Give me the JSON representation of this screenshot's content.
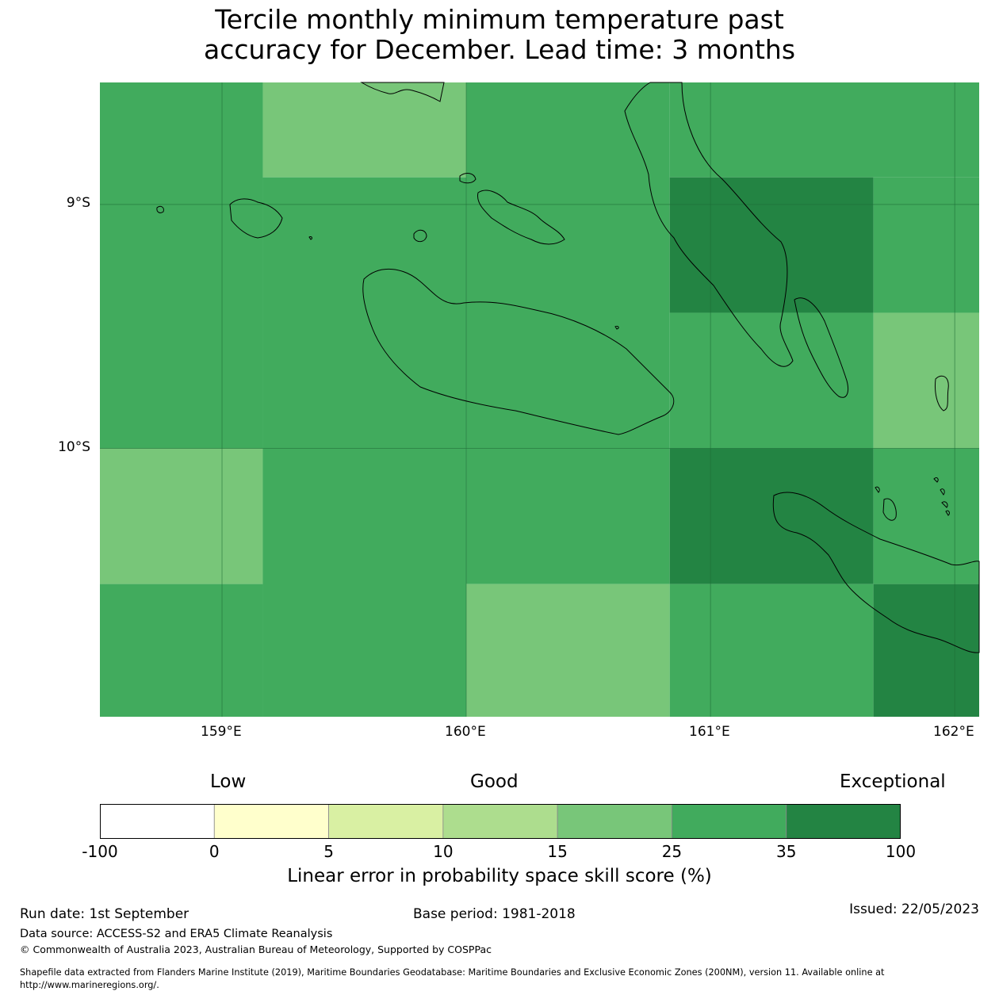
{
  "title": {
    "line1": "Tercile monthly minimum temperature past",
    "line2": "accuracy for December. Lead time: 3 months"
  },
  "map": {
    "lon_range": [
      158.5,
      162.1
    ],
    "lat_range": [
      -8.5,
      -11.1
    ],
    "x_ticks": [
      {
        "lon": 159,
        "label": "159°E"
      },
      {
        "lon": 160,
        "label": "160°E"
      },
      {
        "lon": 161,
        "label": "161°E"
      },
      {
        "lon": 162,
        "label": "162°E"
      }
    ],
    "y_ticks": [
      {
        "lat": -9,
        "label": "9°S"
      },
      {
        "lat": -10,
        "label": "10°S"
      }
    ],
    "grid": true,
    "grid_cells_note_skip": true,
    "cells": [
      {
        "lon0": 158.5,
        "lon1": 159.167,
        "lat0": -8.5,
        "lat1": -10.0,
        "class": 5
      },
      {
        "lon0": 159.167,
        "lon1": 160.0,
        "lat0": -8.5,
        "lat1": -8.889,
        "class": 4
      },
      {
        "lon0": 159.167,
        "lon1": 160.0,
        "lat0": -8.889,
        "lat1": -10.0,
        "class": 5
      },
      {
        "lon0": 160.0,
        "lon1": 160.833,
        "lat0": -8.5,
        "lat1": -10.0,
        "class": 5
      },
      {
        "lon0": 160.833,
        "lon1": 162.1,
        "lat0": -8.5,
        "lat1": -8.889,
        "class": 5
      },
      {
        "lon0": 160.833,
        "lon1": 161.667,
        "lat0": -8.889,
        "lat1": -9.444,
        "class": 6
      },
      {
        "lon0": 161.667,
        "lon1": 162.1,
        "lat0": -8.889,
        "lat1": -9.444,
        "class": 5
      },
      {
        "lon0": 160.833,
        "lon1": 161.667,
        "lat0": -9.444,
        "lat1": -10.0,
        "class": 5
      },
      {
        "lon0": 161.667,
        "lon1": 162.1,
        "lat0": -9.444,
        "lat1": -10.0,
        "class": 4
      },
      {
        "lon0": 158.5,
        "lon1": 159.167,
        "lat0": -10.0,
        "lat1": -10.556,
        "class": 4
      },
      {
        "lon0": 158.5,
        "lon1": 159.167,
        "lat0": -10.556,
        "lat1": -11.1,
        "class": 5
      },
      {
        "lon0": 159.167,
        "lon1": 160.0,
        "lat0": -10.0,
        "lat1": -11.1,
        "class": 5
      },
      {
        "lon0": 160.0,
        "lon1": 160.833,
        "lat0": -10.0,
        "lat1": -10.556,
        "class": 5
      },
      {
        "lon0": 160.0,
        "lon1": 160.833,
        "lat0": -10.556,
        "lat1": -11.1,
        "class": 4
      },
      {
        "lon0": 160.833,
        "lon1": 161.667,
        "lat0": -10.0,
        "lat1": -10.556,
        "class": 6
      },
      {
        "lon0": 161.667,
        "lon1": 162.1,
        "lat0": -10.0,
        "lat1": -10.556,
        "class": 5
      },
      {
        "lon0": 160.833,
        "lon1": 161.667,
        "lat0": -10.556,
        "lat1": -11.1,
        "class": 5
      },
      {
        "lon0": 161.667,
        "lon1": 162.1,
        "lat0": -10.556,
        "lat1": -11.1,
        "class": 6
      }
    ]
  },
  "legend": {
    "category_labels": {
      "low": "Low",
      "good": "Good",
      "exceptional": "Exceptional"
    },
    "tick_labels": [
      "-100",
      "0",
      "5",
      "10",
      "15",
      "25",
      "35",
      "100"
    ],
    "colors": [
      "#ffffff",
      "#ffffcc",
      "#d9f0a3",
      "#addd8e",
      "#78c679",
      "#41ab5d",
      "#238443"
    ],
    "title": "Linear error in probability space skill score (%)"
  },
  "footer": {
    "run_date": "Run date: 1st September",
    "base_period": "Base period: 1981-2018",
    "issued": "Issued: 22/05/2023",
    "data_source": "Data source: ACCESS-S2 and ERA5 Climate Reanalysis",
    "copyright": "© Commonwealth of Australia 2023, Australian Bureau of Meteorology, Supported by COSPPac",
    "shapefile_line1": "Shapefile data extracted from Flanders Marine Institute (2019), Maritime Boundaries Geodatabase: Maritime Boundaries and Exclusive Economic Zones (200NM), version 11. Available online at",
    "shapefile_line2": "http://www.marineregions.org/."
  }
}
